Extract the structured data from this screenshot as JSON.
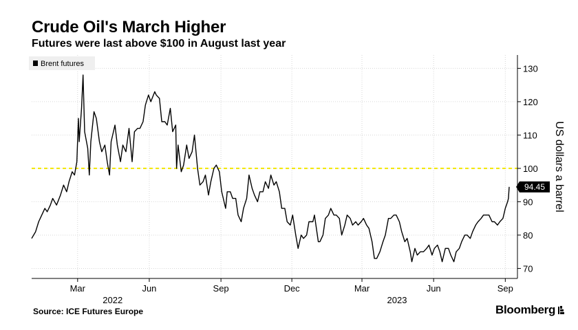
{
  "header": {
    "title": "Crude Oil's March Higher",
    "subtitle": "Futures were last above $100 in August last year"
  },
  "footer": {
    "source": "Source: ICE Futures Europe",
    "brand": "Bloomberg"
  },
  "chart_data": {
    "type": "line",
    "title": "Crude Oil's March Higher",
    "subtitle": "Futures were last above $100 in August last year",
    "ylabel": "US dollars a barrel",
    "xlabel": "",
    "ylim": [
      67,
      134
    ],
    "yticks": [
      70,
      80,
      90,
      100,
      110,
      120,
      130
    ],
    "y_axis_side": "right",
    "grid": true,
    "legend": {
      "placement": "top-left",
      "entries": [
        "Brent futures"
      ]
    },
    "reference_line": {
      "value": 100,
      "color": "#f2e600",
      "style": "dashed"
    },
    "last_value_label": "94.45",
    "x_range": [
      "2022-01-01",
      "2023-09-06"
    ],
    "x_month_ticks": [
      {
        "date": "2022-03-01",
        "label": "Mar"
      },
      {
        "date": "2022-06-01",
        "label": "Jun"
      },
      {
        "date": "2022-09-01",
        "label": "Sep"
      },
      {
        "date": "2022-12-01",
        "label": "Dec"
      },
      {
        "date": "2023-03-01",
        "label": "Mar"
      },
      {
        "date": "2023-06-01",
        "label": "Jun"
      },
      {
        "date": "2023-09-01",
        "label": "Sep"
      }
    ],
    "x_year_labels": [
      {
        "date": "2022-04-15",
        "label": "2022"
      },
      {
        "date": "2023-04-15",
        "label": "2023"
      }
    ],
    "series": [
      {
        "name": "Brent futures",
        "color": "#000000",
        "points": [
          [
            "2022-01-01",
            79
          ],
          [
            "2022-01-06",
            81
          ],
          [
            "2022-01-10",
            84
          ],
          [
            "2022-01-14",
            86
          ],
          [
            "2022-01-18",
            88
          ],
          [
            "2022-01-21",
            87
          ],
          [
            "2022-01-25",
            89
          ],
          [
            "2022-01-28",
            91
          ],
          [
            "2022-02-02",
            89
          ],
          [
            "2022-02-07",
            92
          ],
          [
            "2022-02-11",
            95
          ],
          [
            "2022-02-15",
            93
          ],
          [
            "2022-02-18",
            96
          ],
          [
            "2022-02-22",
            99
          ],
          [
            "2022-02-25",
            98
          ],
          [
            "2022-02-28",
            102
          ],
          [
            "2022-03-02",
            115
          ],
          [
            "2022-03-03",
            108
          ],
          [
            "2022-03-06",
            118
          ],
          [
            "2022-03-08",
            128
          ],
          [
            "2022-03-10",
            111
          ],
          [
            "2022-03-14",
            106
          ],
          [
            "2022-03-16",
            98
          ],
          [
            "2022-03-18",
            108
          ],
          [
            "2022-03-22",
            117
          ],
          [
            "2022-03-25",
            115
          ],
          [
            "2022-03-29",
            108
          ],
          [
            "2022-04-01",
            105
          ],
          [
            "2022-04-05",
            107
          ],
          [
            "2022-04-08",
            102
          ],
          [
            "2022-04-11",
            98
          ],
          [
            "2022-04-13",
            108
          ],
          [
            "2022-04-18",
            113
          ],
          [
            "2022-04-21",
            107
          ],
          [
            "2022-04-25",
            102
          ],
          [
            "2022-04-28",
            107
          ],
          [
            "2022-05-02",
            105
          ],
          [
            "2022-05-06",
            112
          ],
          [
            "2022-05-10",
            102
          ],
          [
            "2022-05-13",
            111
          ],
          [
            "2022-05-17",
            112
          ],
          [
            "2022-05-20",
            112
          ],
          [
            "2022-05-24",
            114
          ],
          [
            "2022-05-27",
            119
          ],
          [
            "2022-05-31",
            122
          ],
          [
            "2022-06-03",
            120
          ],
          [
            "2022-06-08",
            123
          ],
          [
            "2022-06-10",
            122
          ],
          [
            "2022-06-14",
            121
          ],
          [
            "2022-06-17",
            114
          ],
          [
            "2022-06-21",
            114
          ],
          [
            "2022-06-24",
            113
          ],
          [
            "2022-06-28",
            118
          ],
          [
            "2022-07-01",
            111
          ],
          [
            "2022-07-05",
            113
          ],
          [
            "2022-07-06",
            100
          ],
          [
            "2022-07-08",
            107
          ],
          [
            "2022-07-12",
            99
          ],
          [
            "2022-07-15",
            101
          ],
          [
            "2022-07-19",
            107
          ],
          [
            "2022-07-22",
            103
          ],
          [
            "2022-07-26",
            105
          ],
          [
            "2022-07-29",
            110
          ],
          [
            "2022-08-02",
            100
          ],
          [
            "2022-08-05",
            95
          ],
          [
            "2022-08-09",
            96
          ],
          [
            "2022-08-12",
            98
          ],
          [
            "2022-08-16",
            92
          ],
          [
            "2022-08-19",
            96
          ],
          [
            "2022-08-23",
            100
          ],
          [
            "2022-08-26",
            101
          ],
          [
            "2022-08-30",
            99
          ],
          [
            "2022-09-02",
            93
          ],
          [
            "2022-09-07",
            88
          ],
          [
            "2022-09-09",
            93
          ],
          [
            "2022-09-13",
            93
          ],
          [
            "2022-09-16",
            91
          ],
          [
            "2022-09-20",
            91
          ],
          [
            "2022-09-23",
            86
          ],
          [
            "2022-09-27",
            84
          ],
          [
            "2022-09-30",
            88
          ],
          [
            "2022-10-04",
            91
          ],
          [
            "2022-10-07",
            98
          ],
          [
            "2022-10-11",
            94
          ],
          [
            "2022-10-14",
            92
          ],
          [
            "2022-10-18",
            90
          ],
          [
            "2022-10-21",
            93
          ],
          [
            "2022-10-25",
            93
          ],
          [
            "2022-10-28",
            96
          ],
          [
            "2022-11-01",
            94
          ],
          [
            "2022-11-04",
            98
          ],
          [
            "2022-11-08",
            95
          ],
          [
            "2022-11-11",
            96
          ],
          [
            "2022-11-15",
            93
          ],
          [
            "2022-11-18",
            88
          ],
          [
            "2022-11-22",
            88
          ],
          [
            "2022-11-25",
            84
          ],
          [
            "2022-11-29",
            83
          ],
          [
            "2022-12-02",
            86
          ],
          [
            "2022-12-06",
            80
          ],
          [
            "2022-12-09",
            76
          ],
          [
            "2022-12-13",
            80
          ],
          [
            "2022-12-16",
            79
          ],
          [
            "2022-12-20",
            80
          ],
          [
            "2022-12-23",
            84
          ],
          [
            "2022-12-28",
            84
          ],
          [
            "2022-12-30",
            86
          ],
          [
            "2023-01-04",
            78
          ],
          [
            "2023-01-06",
            78
          ],
          [
            "2023-01-10",
            80
          ],
          [
            "2023-01-13",
            85
          ],
          [
            "2023-01-17",
            86
          ],
          [
            "2023-01-20",
            88
          ],
          [
            "2023-01-24",
            86
          ],
          [
            "2023-01-27",
            86
          ],
          [
            "2023-01-31",
            85
          ],
          [
            "2023-02-03",
            80
          ],
          [
            "2023-02-07",
            83
          ],
          [
            "2023-02-10",
            86
          ],
          [
            "2023-02-14",
            85
          ],
          [
            "2023-02-17",
            83
          ],
          [
            "2023-02-21",
            84
          ],
          [
            "2023-02-24",
            83
          ],
          [
            "2023-02-28",
            84
          ],
          [
            "2023-03-03",
            85
          ],
          [
            "2023-03-07",
            83
          ],
          [
            "2023-03-10",
            82
          ],
          [
            "2023-03-14",
            78
          ],
          [
            "2023-03-17",
            73
          ],
          [
            "2023-03-20",
            73
          ],
          [
            "2023-03-24",
            75
          ],
          [
            "2023-03-28",
            78
          ],
          [
            "2023-03-31",
            80
          ],
          [
            "2023-04-04",
            85
          ],
          [
            "2023-04-07",
            85
          ],
          [
            "2023-04-11",
            86
          ],
          [
            "2023-04-14",
            86
          ],
          [
            "2023-04-18",
            84
          ],
          [
            "2023-04-21",
            81
          ],
          [
            "2023-04-25",
            78
          ],
          [
            "2023-04-28",
            79
          ],
          [
            "2023-05-02",
            75
          ],
          [
            "2023-05-04",
            72
          ],
          [
            "2023-05-08",
            76
          ],
          [
            "2023-05-11",
            74
          ],
          [
            "2023-05-15",
            75
          ],
          [
            "2023-05-19",
            75
          ],
          [
            "2023-05-23",
            76
          ],
          [
            "2023-05-26",
            77
          ],
          [
            "2023-05-30",
            74
          ],
          [
            "2023-06-02",
            76
          ],
          [
            "2023-06-06",
            77
          ],
          [
            "2023-06-09",
            75
          ],
          [
            "2023-06-12",
            72
          ],
          [
            "2023-06-14",
            74
          ],
          [
            "2023-06-16",
            76
          ],
          [
            "2023-06-20",
            76
          ],
          [
            "2023-06-23",
            74
          ],
          [
            "2023-06-27",
            72
          ],
          [
            "2023-06-30",
            75
          ],
          [
            "2023-07-04",
            76
          ],
          [
            "2023-07-07",
            78
          ],
          [
            "2023-07-11",
            80
          ],
          [
            "2023-07-14",
            80
          ],
          [
            "2023-07-18",
            79
          ],
          [
            "2023-07-21",
            81
          ],
          [
            "2023-07-25",
            83
          ],
          [
            "2023-07-28",
            84
          ],
          [
            "2023-08-01",
            85
          ],
          [
            "2023-08-04",
            86
          ],
          [
            "2023-08-08",
            86
          ],
          [
            "2023-08-11",
            86
          ],
          [
            "2023-08-15",
            84
          ],
          [
            "2023-08-18",
            84
          ],
          [
            "2023-08-22",
            83
          ],
          [
            "2023-08-25",
            84
          ],
          [
            "2023-08-29",
            85
          ],
          [
            "2023-08-31",
            87
          ],
          [
            "2023-09-01",
            88
          ],
          [
            "2023-09-04",
            90
          ],
          [
            "2023-09-05",
            91
          ],
          [
            "2023-09-06",
            94.45
          ]
        ]
      }
    ]
  }
}
